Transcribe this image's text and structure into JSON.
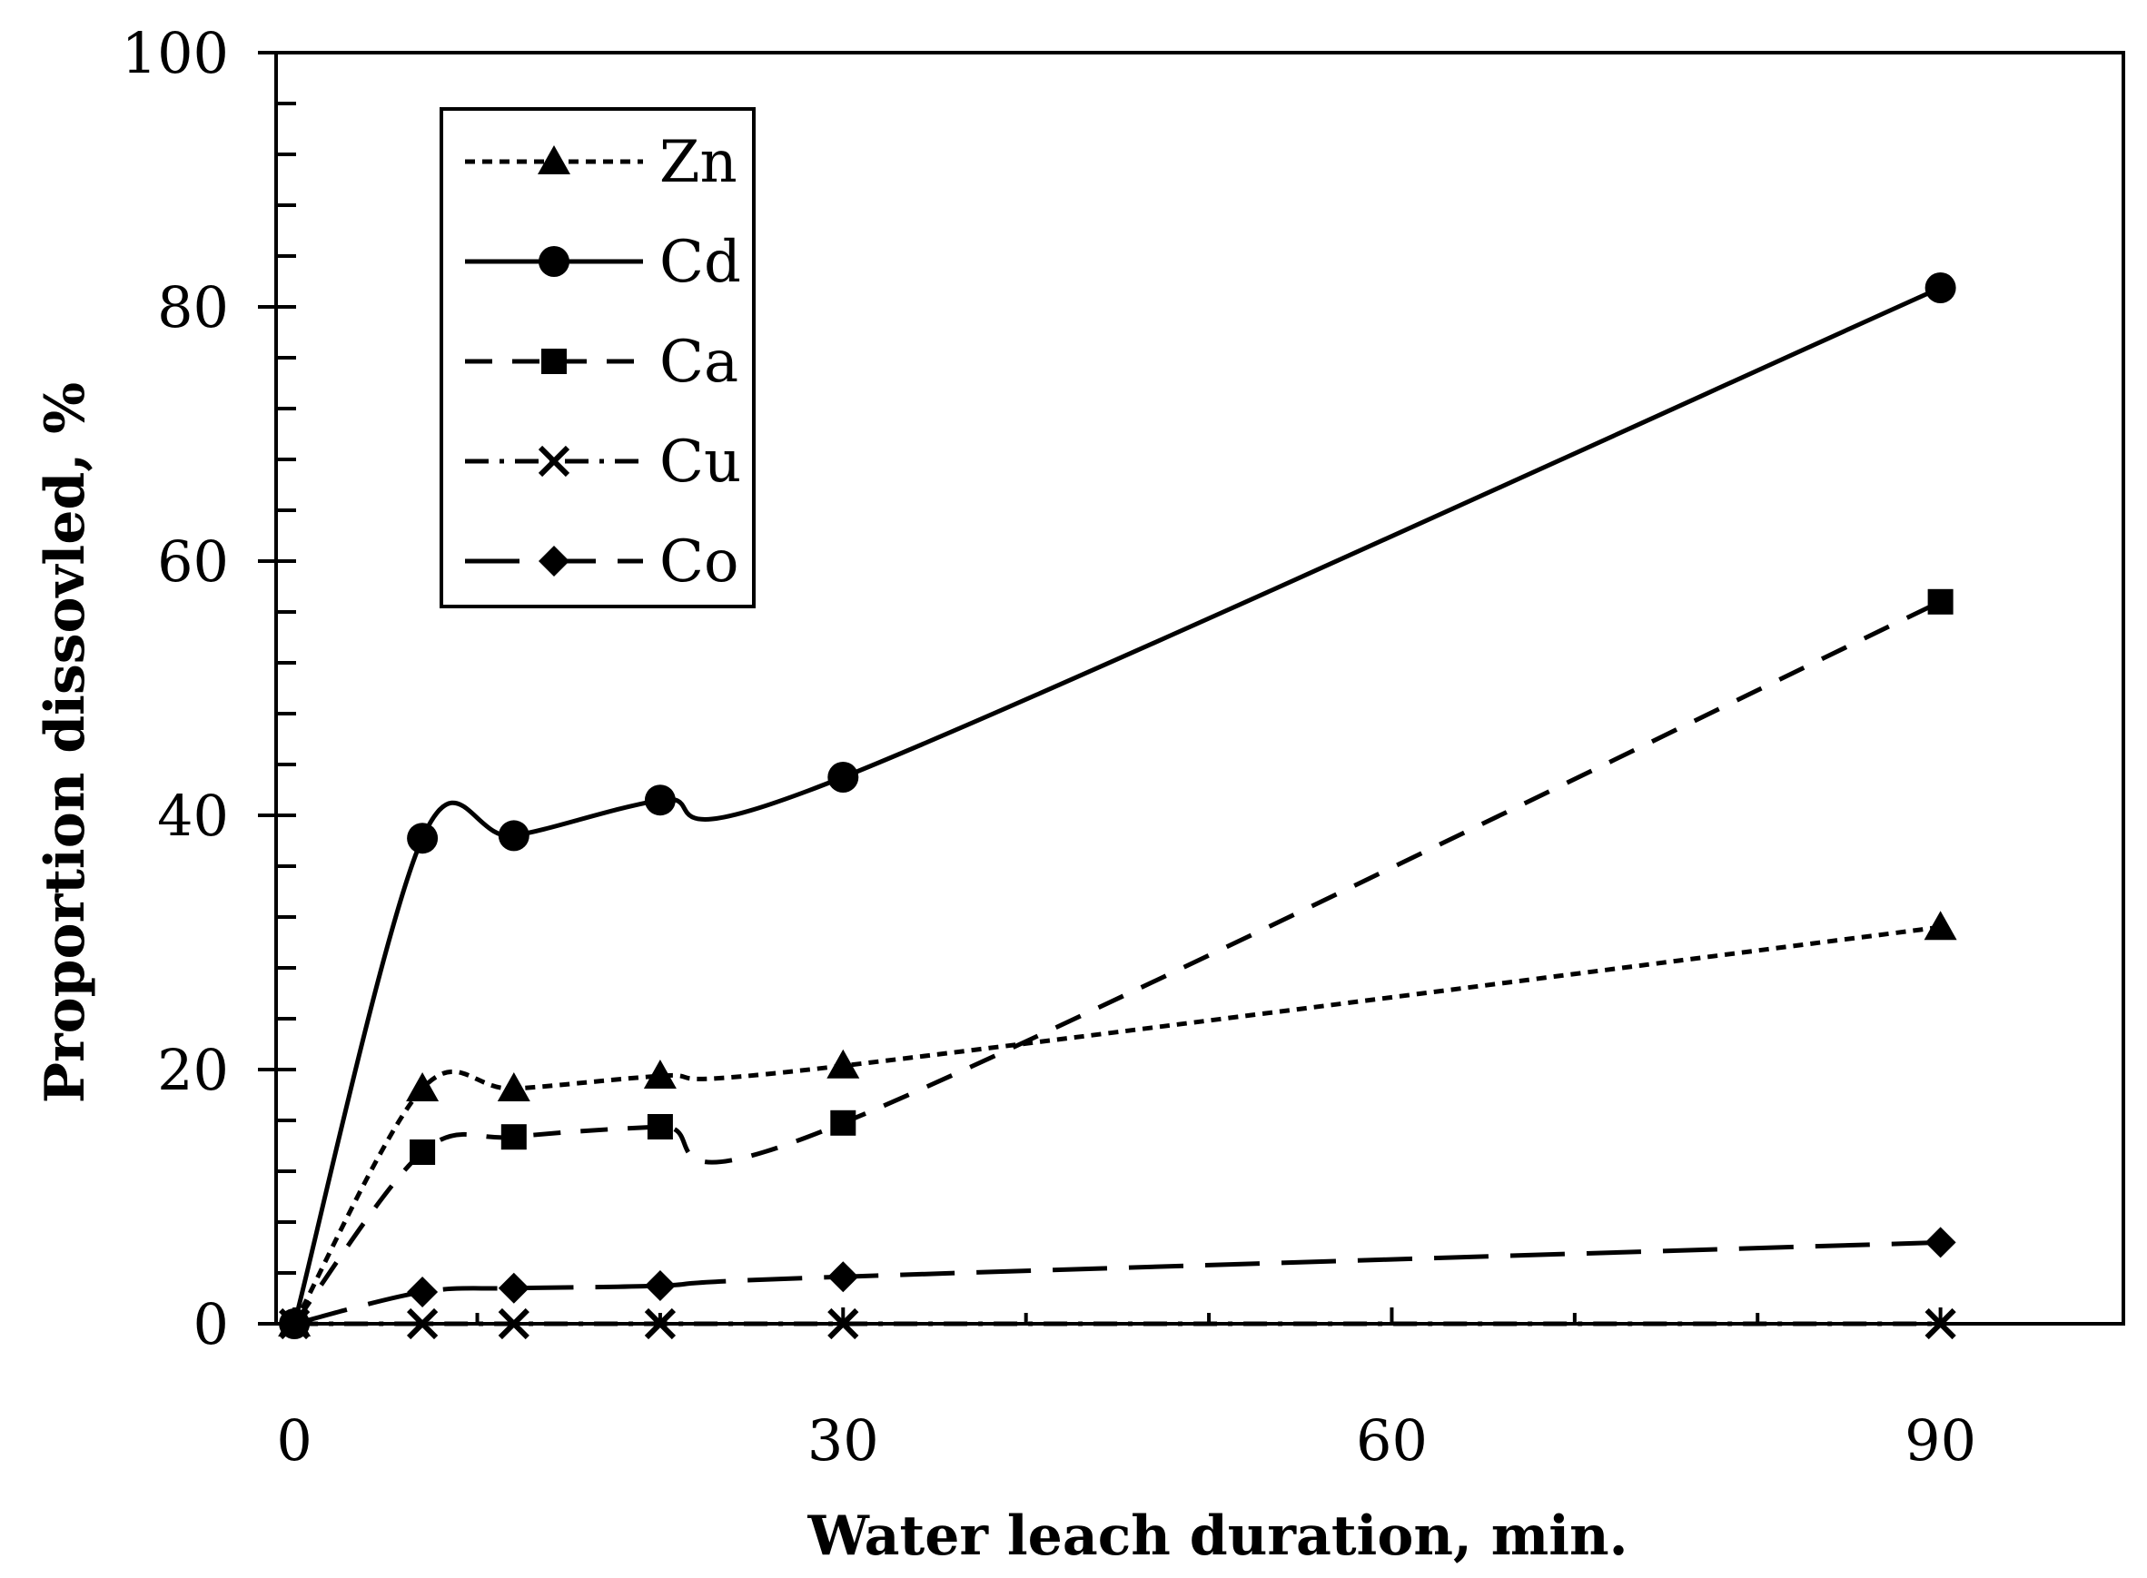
{
  "chart_data": {
    "type": "line",
    "title": "",
    "xlabel": "Water leach duration, min.",
    "ylabel": "Proportion dissovled, %",
    "xlim": [
      -1,
      100
    ],
    "ylim": [
      0,
      100
    ],
    "xticks": [
      0,
      30,
      60,
      90
    ],
    "xtick_labels": [
      "0",
      "30",
      "60",
      "90"
    ],
    "xminor": [
      10,
      20,
      40,
      50,
      70,
      80
    ],
    "yticks": [
      0,
      20,
      40,
      60,
      80,
      100
    ],
    "ytick_labels": [
      "0",
      "20",
      "40",
      "60",
      "80",
      "100"
    ],
    "yminor_step": 4,
    "grid": false,
    "legend_position": "top-left",
    "x": [
      0,
      7,
      12,
      20,
      30,
      90
    ],
    "series": [
      {
        "name": "Zn",
        "marker": "triangle",
        "dash": "dotted",
        "values": [
          0,
          18.5,
          18.5,
          19.5,
          20.3,
          31.2
        ]
      },
      {
        "name": "Cd",
        "marker": "circle",
        "dash": "solid",
        "values": [
          0,
          38.2,
          38.4,
          41.2,
          43.0,
          81.5
        ]
      },
      {
        "name": "Ca",
        "marker": "square",
        "dash": "dashed",
        "values": [
          0,
          13.5,
          14.7,
          15.5,
          15.8,
          56.8
        ]
      },
      {
        "name": "Cu",
        "marker": "x",
        "dash": "dashdot",
        "values": [
          0,
          0,
          0,
          0,
          0,
          0
        ]
      },
      {
        "name": "Co",
        "marker": "diamond",
        "dash": "longdash",
        "values": [
          0,
          2.5,
          2.8,
          3.0,
          3.7,
          6.4
        ]
      }
    ]
  }
}
